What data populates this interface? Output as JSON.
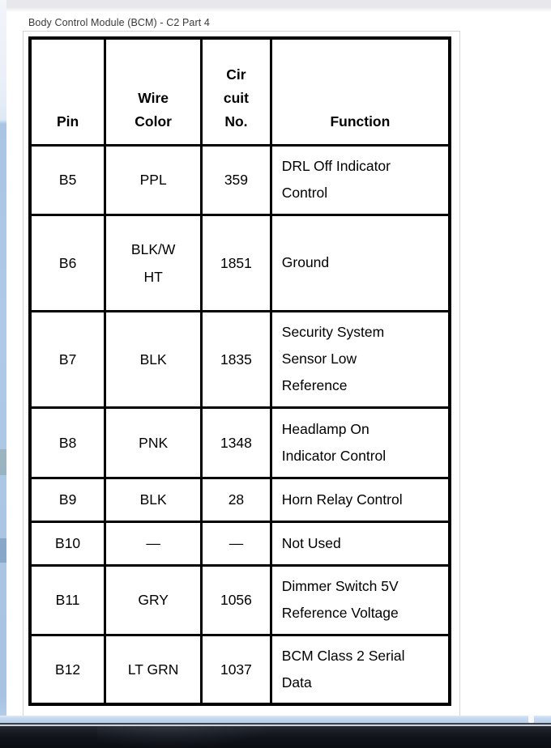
{
  "header": {
    "title": "Body Control Module (BCM) - C2 Part 4"
  },
  "table": {
    "headers": [
      "Pin",
      "Wire\nColor",
      "Cir\ncuit\nNo.",
      "Function"
    ],
    "rows": [
      {
        "pin": "B5",
        "wire_color": "PPL",
        "circuit_no": "359",
        "function": "DRL Off Indicator\nControl"
      },
      {
        "pin": "B6",
        "wire_color": "BLK/W\nHT",
        "circuit_no": "1851",
        "function": "Ground"
      },
      {
        "pin": "B7",
        "wire_color": "BLK",
        "circuit_no": "1835",
        "function": "Security System\nSensor Low\nReference"
      },
      {
        "pin": "B8",
        "wire_color": "PNK",
        "circuit_no": "1348",
        "function": "Headlamp On\nIndicator Control"
      },
      {
        "pin": "B9",
        "wire_color": "BLK",
        "circuit_no": "28",
        "function": "Horn Relay Control"
      },
      {
        "pin": "B10",
        "wire_color": "—",
        "circuit_no": "—",
        "function": "Not Used"
      },
      {
        "pin": "B11",
        "wire_color": "GRY",
        "circuit_no": "1056",
        "function": "Dimmer Switch 5V\nReference Voltage"
      },
      {
        "pin": "B12",
        "wire_color": "LT GRN",
        "circuit_no": "1037",
        "function": "BCM Class 2 Serial\nData"
      }
    ]
  },
  "colors": {
    "frame_glass": "#aac6e3",
    "taskbar": "#10131a",
    "toolbar_strip": "#e8e8ea",
    "table_border": "#000000",
    "panel_border": "#d4d4d4",
    "title_text": "#3a3a3a"
  }
}
